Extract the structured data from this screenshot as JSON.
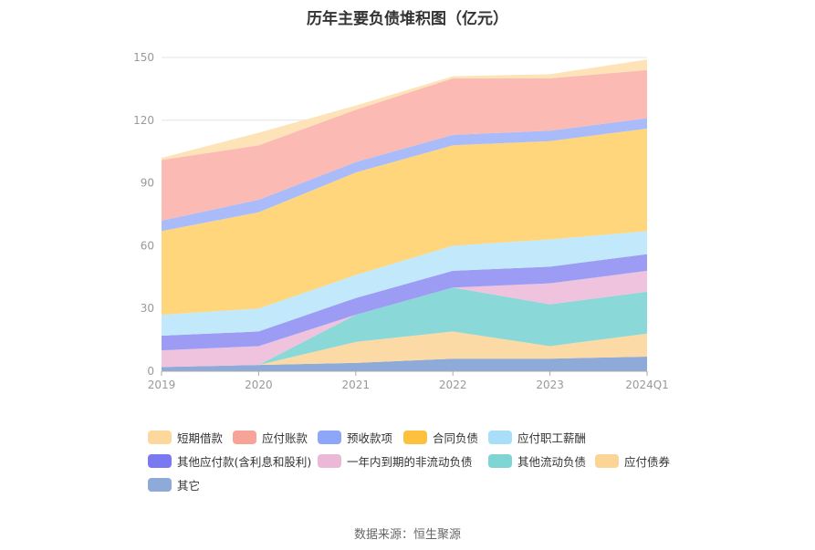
{
  "title": "历年主要负债堆积图（亿元）",
  "source": "数据来源：恒生聚源",
  "chart_data": {
    "type": "area",
    "stacked": true,
    "categories": [
      "2019",
      "2020",
      "2021",
      "2022",
      "2023",
      "2024Q1"
    ],
    "ylim": [
      0,
      150
    ],
    "yticks": [
      0,
      30,
      60,
      90,
      120,
      150
    ],
    "grid": true,
    "legend_position": "bottom",
    "series": [
      {
        "name": "其它",
        "color": "#8eaad8",
        "values": [
          2,
          3,
          4,
          6,
          6,
          7
        ]
      },
      {
        "name": "应付债券",
        "color": "#fcdaa5",
        "values": [
          0,
          0,
          10,
          13,
          6,
          11
        ]
      },
      {
        "name": "其他流动负债",
        "color": "#8ad8d8",
        "values": [
          0,
          0,
          13,
          21,
          20,
          20
        ]
      },
      {
        "name": "一年内到期的非流动负债",
        "color": "#efc2dd",
        "values": [
          8,
          9,
          0,
          0,
          10,
          10
        ]
      },
      {
        "name": "其他应付款(含利息和股利)",
        "color": "#9d9cf5",
        "values": [
          7,
          7,
          8,
          8,
          8,
          8
        ]
      },
      {
        "name": "应付职工薪酬",
        "color": "#c1e8fb",
        "values": [
          10,
          11,
          11,
          12,
          13,
          11
        ]
      },
      {
        "name": "合同负债",
        "color": "#ffd67c",
        "values": [
          40,
          46,
          49,
          48,
          47,
          49
        ]
      },
      {
        "name": "预收款项",
        "color": "#a9bcf9",
        "values": [
          5,
          6,
          5,
          5,
          5,
          5
        ]
      },
      {
        "name": "应付账款",
        "color": "#fcbab5",
        "values": [
          29,
          26,
          25,
          27,
          25,
          23
        ]
      },
      {
        "name": "短期借款",
        "color": "#fde3b7",
        "values": [
          1,
          6,
          2,
          1,
          2,
          5
        ]
      }
    ]
  },
  "legend": [
    {
      "label": "短期借款",
      "color": "#fdd89c"
    },
    {
      "label": "应付账款",
      "color": "#f8a398"
    },
    {
      "label": "预收款项",
      "color": "#8ea6f8"
    },
    {
      "label": "合同负债",
      "color": "#fec13d"
    },
    {
      "label": "应付职工薪酬",
      "color": "#a9def9"
    },
    {
      "label": "其他应付款(含利息和股利)",
      "color": "#7b79f1"
    },
    {
      "label": "一年内到期的非流动负债",
      "color": "#ecb8d8"
    },
    {
      "label": "其他流动负债",
      "color": "#7fd4d4"
    },
    {
      "label": "应付债券",
      "color": "#fcd596"
    },
    {
      "label": "其它",
      "color": "#8eaad8"
    }
  ]
}
